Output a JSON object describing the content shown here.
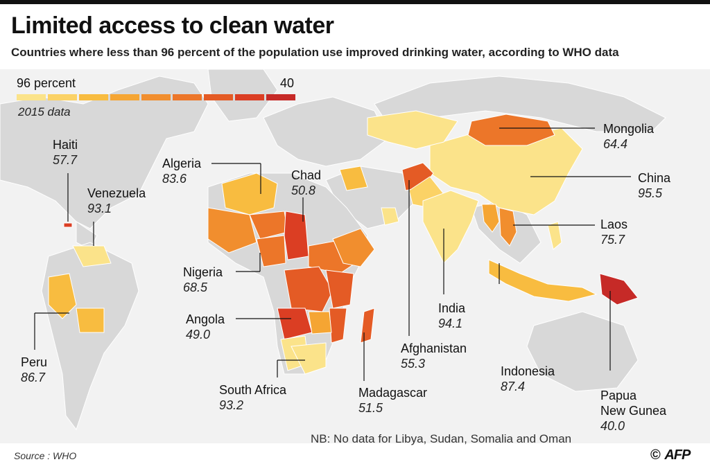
{
  "title": "Limited access to clean water",
  "subtitle": "Countries where less than 96 percent of the population use improved drinking water, according to WHO data",
  "legend": {
    "min_label": "96 percent",
    "max_label": "40",
    "year_label": "2015 data",
    "colors": [
      "#fbe38a",
      "#fbd266",
      "#f8bc40",
      "#f5a533",
      "#f18e2e",
      "#ec7629",
      "#e45b25",
      "#db3e23",
      "#c62a27"
    ]
  },
  "countries": [
    {
      "name": "Haiti",
      "value": "57.7"
    },
    {
      "name": "Venezuela",
      "value": "93.1"
    },
    {
      "name": "Algeria",
      "value": "83.6"
    },
    {
      "name": "Chad",
      "value": "50.8"
    },
    {
      "name": "Mongolia",
      "value": "64.4"
    },
    {
      "name": "China",
      "value": "95.5"
    },
    {
      "name": "Laos",
      "value": "75.7"
    },
    {
      "name": "Nigeria",
      "value": "68.5"
    },
    {
      "name": "Angola",
      "value": "49.0"
    },
    {
      "name": "India",
      "value": "94.1"
    },
    {
      "name": "Afghanistan",
      "value": "55.3"
    },
    {
      "name": "Indonesia",
      "value": "87.4"
    },
    {
      "name": "Peru",
      "value": "86.7"
    },
    {
      "name": "South Africa",
      "value": "93.2"
    },
    {
      "name": "Madagascar",
      "value": "51.5"
    },
    {
      "name": "Papua\nNew Gunea",
      "value": "40.0"
    }
  ],
  "note": "NB: No data for Libya, Sudan, Somalia and Oman",
  "source": "Source : WHO",
  "credit": {
    "symbol": "©",
    "brand": "AFP"
  }
}
